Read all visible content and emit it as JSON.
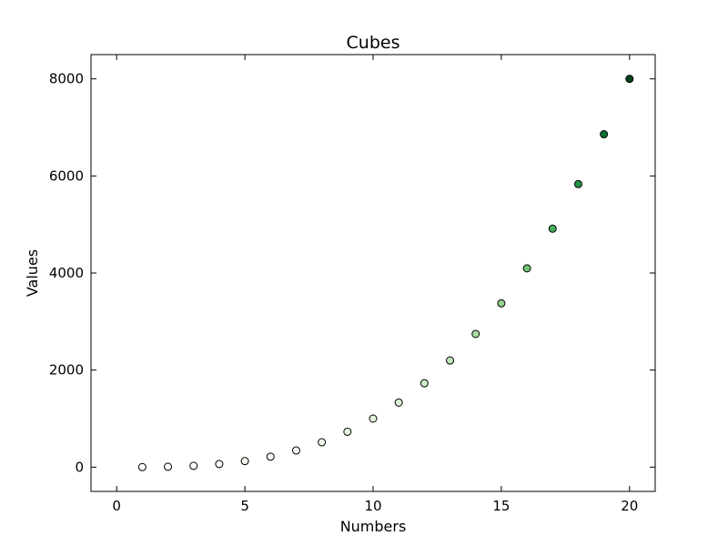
{
  "chart_data": {
    "type": "scatter",
    "title": "Cubes",
    "xlabel": "Numbers",
    "ylabel": "Values",
    "xlim": [
      -1,
      21
    ],
    "ylim": [
      -500,
      8500
    ],
    "xticks": [
      0,
      5,
      10,
      15,
      20
    ],
    "yticks": [
      0,
      2000,
      4000,
      6000,
      8000
    ],
    "grid": false,
    "colormap": "Greens",
    "marker_edge_color": "#000000",
    "x": [
      1,
      2,
      3,
      4,
      5,
      6,
      7,
      8,
      9,
      10,
      11,
      12,
      13,
      14,
      15,
      16,
      17,
      18,
      19,
      20
    ],
    "y": [
      1,
      8,
      27,
      64,
      125,
      216,
      343,
      512,
      729,
      1000,
      1331,
      1728,
      2197,
      2744,
      3375,
      4096,
      4913,
      5832,
      6859,
      8000
    ]
  }
}
